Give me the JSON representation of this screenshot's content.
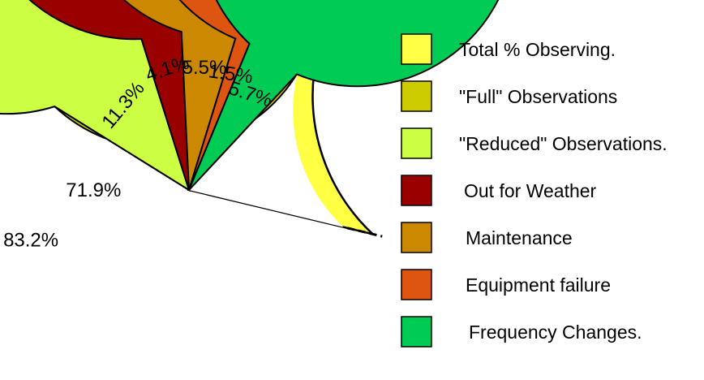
{
  "chart_data": {
    "type": "pie",
    "title": "",
    "outer_ring": {
      "name": "Total % Observing.",
      "value": 83.2,
      "label": "83.2%",
      "color": "#ffff44"
    },
    "slices": [
      {
        "name": "\"Full\" Observations",
        "value": 71.9,
        "label": "71.9%",
        "color": "#cccc00"
      },
      {
        "name": "\"Reduced\" Observations.",
        "value": 11.3,
        "label": "11.3%",
        "color": "#ccff44"
      },
      {
        "name": "Out for Weather",
        "value": 4.1,
        "label": "4.1%",
        "color": "#990000"
      },
      {
        "name": "Maintenance",
        "value": 5.5,
        "label": "5.5%",
        "color": "#cc8800"
      },
      {
        "name": "Equipment failure",
        "value": 1.5,
        "label": "1.5%",
        "color": "#dd5511"
      },
      {
        "name": "Frequency Changes.",
        "value": 5.7,
        "label": "5.7%",
        "color": "#00cc55"
      }
    ],
    "legend": {
      "placement": "right",
      "items": [
        {
          "label": "Total % Observing.",
          "color": "#ffff44"
        },
        {
          "label": "\"Full\" Observations",
          "color": "#cccc00"
        },
        {
          "label": "\"Reduced\" Observations.",
          "color": "#ccff44"
        },
        {
          "label": "Out for Weather",
          "color": "#990000"
        },
        {
          "label": "Maintenance",
          "color": "#cc8800"
        },
        {
          "label": "Equipment failure",
          "color": "#dd5511"
        },
        {
          "label": "Frequency Changes.",
          "color": "#00cc55"
        }
      ]
    }
  }
}
